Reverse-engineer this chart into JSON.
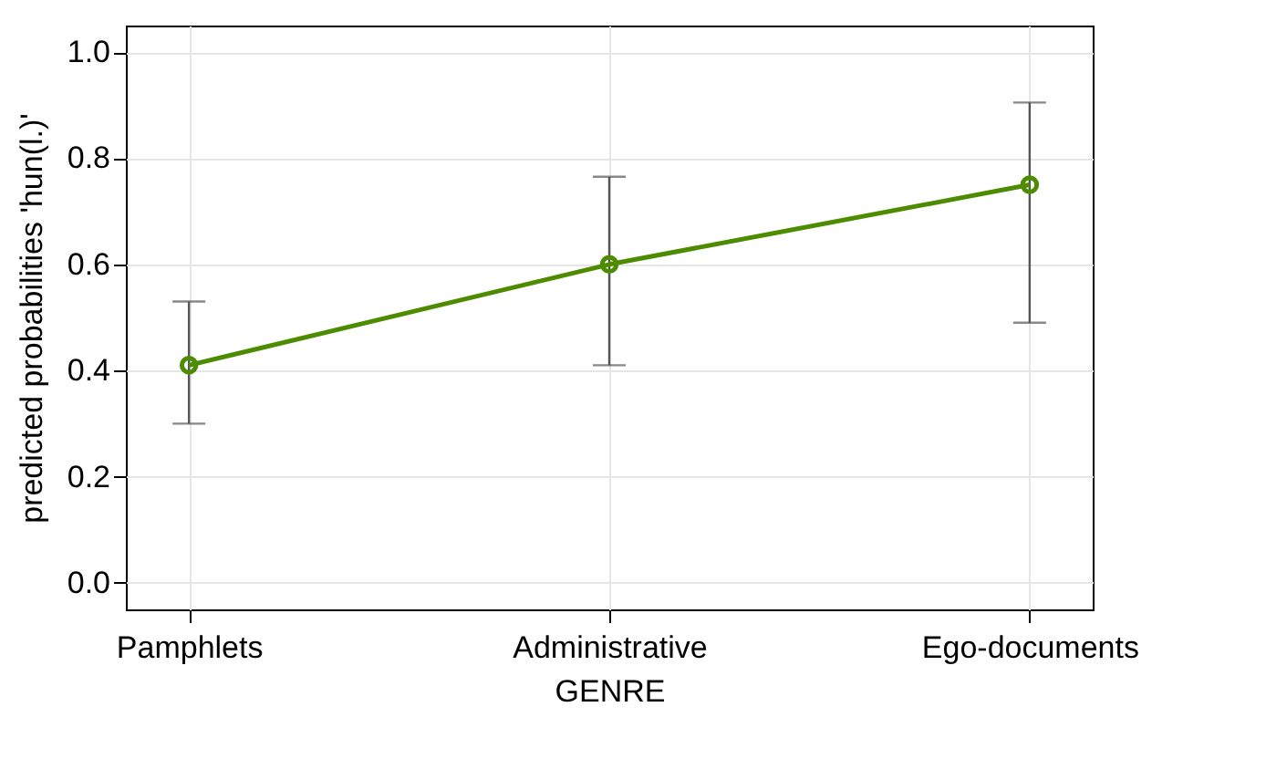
{
  "chart_data": {
    "type": "line",
    "xlabel": "GENRE",
    "ylabel": "predicted probabilities 'hun(l.)'",
    "categories": [
      "Pamphlets",
      "Administrative",
      "Ego-documents"
    ],
    "series": [
      {
        "color": "#4d8c00",
        "values": [
          0.41,
          0.6,
          0.75
        ],
        "errors": [
          [
            0.3,
            0.53
          ],
          [
            0.41,
            0.765
          ],
          [
            0.49,
            0.905
          ]
        ]
      }
    ],
    "ylim": [
      -0.05,
      1.05
    ],
    "yticks": [
      {
        "value": 0,
        "label": "0.0"
      },
      0.2,
      0.4,
      0.6,
      0.8,
      {
        "value": 1,
        "label": "1.0"
      }
    ],
    "grid": true,
    "marker": "circle",
    "line_style": "solid"
  }
}
